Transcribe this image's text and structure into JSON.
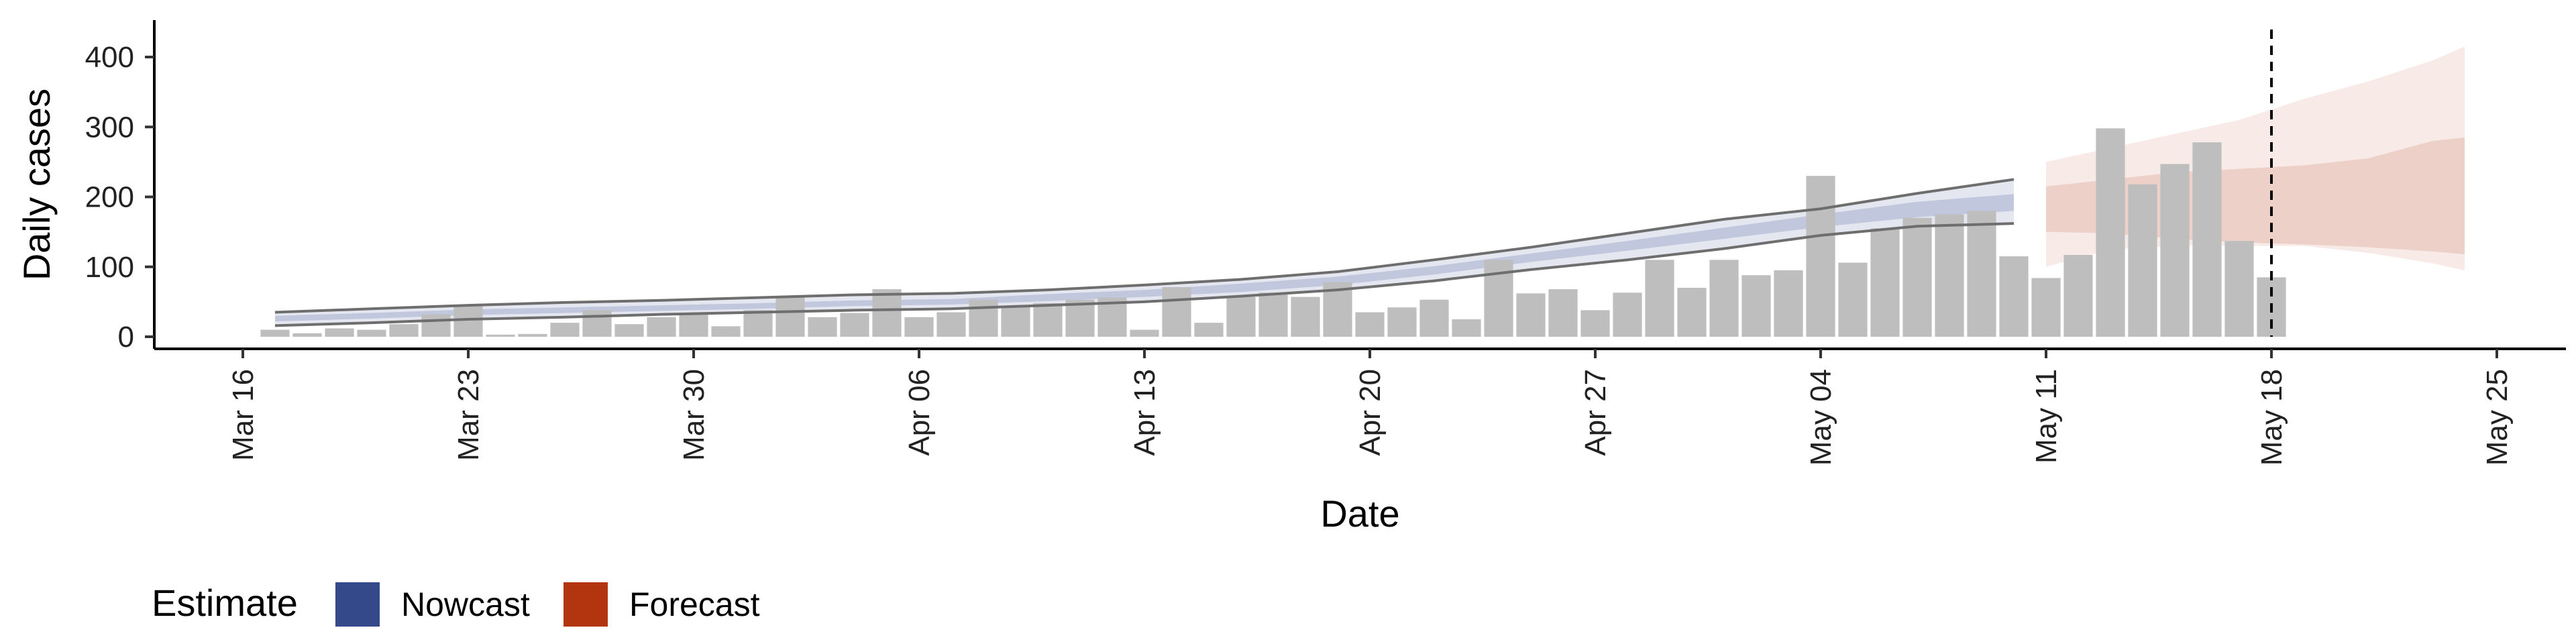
{
  "chart_data": {
    "type": "bar",
    "xlabel": "Date",
    "ylabel": "Daily cases",
    "xlim": [
      "2020-03-16",
      "2020-05-25"
    ],
    "ylim": [
      0,
      450
    ],
    "x_ticks": [
      "Mar 16",
      "Mar 23",
      "Mar 30",
      "Apr 06",
      "Apr 13",
      "Apr 20",
      "Apr 27",
      "May 04",
      "May 11",
      "May 18",
      "May 25"
    ],
    "y_ticks": [
      0,
      100,
      200,
      300,
      400
    ],
    "grid": false,
    "bars_color": "#bebebe",
    "bars": {
      "dates": [
        "2020-03-17",
        "2020-03-18",
        "2020-03-19",
        "2020-03-20",
        "2020-03-21",
        "2020-03-22",
        "2020-03-23",
        "2020-03-24",
        "2020-03-25",
        "2020-03-26",
        "2020-03-27",
        "2020-03-28",
        "2020-03-29",
        "2020-03-30",
        "2020-03-31",
        "2020-04-01",
        "2020-04-02",
        "2020-04-03",
        "2020-04-04",
        "2020-04-05",
        "2020-04-06",
        "2020-04-07",
        "2020-04-08",
        "2020-04-09",
        "2020-04-10",
        "2020-04-11",
        "2020-04-12",
        "2020-04-13",
        "2020-04-14",
        "2020-04-15",
        "2020-04-16",
        "2020-04-17",
        "2020-04-18",
        "2020-04-19",
        "2020-04-20",
        "2020-04-21",
        "2020-04-22",
        "2020-04-23",
        "2020-04-24",
        "2020-04-25",
        "2020-04-26",
        "2020-04-27",
        "2020-04-28",
        "2020-04-29",
        "2020-04-30",
        "2020-05-01",
        "2020-05-02",
        "2020-05-03",
        "2020-05-04",
        "2020-05-05",
        "2020-05-06",
        "2020-05-07",
        "2020-05-08",
        "2020-05-09",
        "2020-05-10",
        "2020-05-11",
        "2020-05-12",
        "2020-05-13",
        "2020-05-14",
        "2020-05-15",
        "2020-05-16",
        "2020-05-17",
        "2020-05-18"
      ],
      "values": [
        10,
        5,
        12,
        10,
        18,
        32,
        45,
        3,
        4,
        20,
        38,
        18,
        28,
        32,
        15,
        38,
        57,
        28,
        34,
        68,
        28,
        35,
        53,
        43,
        48,
        53,
        56,
        10,
        71,
        20,
        57,
        63,
        57,
        78,
        35,
        42,
        53,
        25,
        110,
        62,
        68,
        38,
        63,
        110,
        70,
        110,
        88,
        95,
        230,
        106,
        155,
        170,
        175,
        180,
        115,
        84,
        117,
        298,
        218,
        247,
        278,
        137,
        85
      ]
    },
    "series": [
      {
        "name": "Nowcast",
        "color": "#34498a",
        "dates": [
          "2020-03-17",
          "2020-03-20",
          "2020-03-23",
          "2020-03-26",
          "2020-03-29",
          "2020-04-01",
          "2020-04-04",
          "2020-04-07",
          "2020-04-10",
          "2020-04-13",
          "2020-04-16",
          "2020-04-19",
          "2020-04-22",
          "2020-04-25",
          "2020-04-28",
          "2020-05-01",
          "2020-05-04",
          "2020-05-07",
          "2020-05-10"
        ],
        "median": [
          26,
          30,
          35,
          38,
          41,
          44,
          48,
          50,
          56,
          62,
          70,
          80,
          95,
          113,
          130,
          148,
          166,
          182,
          192
        ],
        "inner": {
          "lower": [
            22,
            26,
            31,
            34,
            37,
            40,
            44,
            46,
            51,
            57,
            64,
            74,
            89,
            107,
            123,
            140,
            157,
            171,
            180
          ],
          "upper": [
            30,
            34,
            39,
            42,
            45,
            48,
            52,
            54,
            61,
            67,
            76,
            86,
            101,
            119,
            137,
            156,
            175,
            193,
            204
          ]
        },
        "outer": {
          "lower": [
            16,
            20,
            25,
            28,
            32,
            35,
            38,
            40,
            45,
            50,
            58,
            67,
            80,
            96,
            110,
            126,
            145,
            158,
            162
          ],
          "upper": [
            35,
            40,
            45,
            49,
            52,
            56,
            60,
            62,
            67,
            74,
            82,
            93,
            110,
            128,
            148,
            168,
            183,
            205,
            225
          ]
        }
      },
      {
        "name": "Forecast",
        "color": "#b3350f",
        "dates": [
          "2020-05-11",
          "2020-05-13",
          "2020-05-15",
          "2020-05-17",
          "2020-05-19",
          "2020-05-21",
          "2020-05-23",
          "2020-05-24"
        ],
        "median": [
          190,
          195,
          200,
          205,
          210,
          215,
          225,
          228
        ],
        "inner": {
          "lower": [
            150,
            148,
            140,
            135,
            132,
            128,
            122,
            118
          ],
          "upper": [
            215,
            225,
            235,
            240,
            245,
            255,
            280,
            285
          ]
        },
        "outer": {
          "lower": [
            100,
            125,
            130,
            130,
            130,
            120,
            105,
            95
          ],
          "upper": [
            250,
            270,
            290,
            310,
            340,
            365,
            395,
            415
          ]
        }
      }
    ],
    "vline": {
      "date": "2020-05-18",
      "style": "dashed"
    },
    "legend": {
      "title": "Estimate",
      "position": "bottom-left",
      "entries": [
        "Nowcast",
        "Forecast"
      ]
    }
  }
}
